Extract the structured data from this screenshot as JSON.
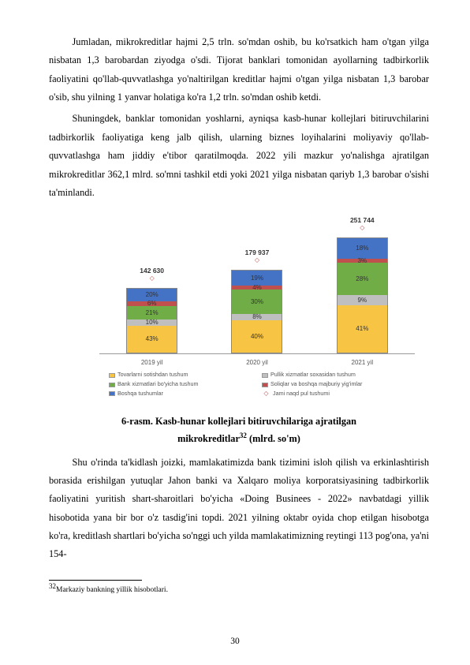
{
  "para1": "Jumladan, mikrokreditlar hajmi 2,5 trln. so'mdan oshib, bu ko'rsatkich ham o'tgan yilga nisbatan 1,3 barobardan ziyodga o'sdi. Tijorat banklari tomonidan ayollarning tadbirkorlik faoliyatini qo'llab-quvvatlashga yo'naltirilgan kreditlar hajmi o'tgan yilga nisbatan 1,3 barobar o'sib, shu yilning 1 yanvar holatiga ko'ra 1,2 trln. so'mdan oshib ketdi.",
  "para2": "Shuningdek, banklar tomonidan yoshlarni, ayniqsa kasb-hunar kollejlari bitiruvchilarini tadbirkorlik faoliyatiga keng jalb qilish, ularning biznes loyihalarini moliyaviy qo'llab-quvvatlashga ham jiddiy e'tibor qaratilmoqda. 2022 yili mazkur yo'nalishga ajratilgan mikrokreditlar 362,1 mlrd. so'mni tashkil etdi yoki 2021 yilga nisbatan qariyb 1,3 barobar o'sishi ta'minlandi.",
  "chart": {
    "type": "stacked-bar",
    "categories": [
      "2019 yil",
      "2020 yil",
      "2021 yil"
    ],
    "totals": [
      "142 630",
      "179 937",
      "251 744"
    ],
    "colors": {
      "yellow": "#f7c444",
      "grey": "#bfbfbf",
      "green": "#70ad47",
      "red": "#c0504d",
      "blue": "#4472c4"
    },
    "series": [
      {
        "labels": [
          "43%",
          "10%",
          "21%",
          "6%",
          "20%"
        ],
        "heights": [
          34,
          8,
          17,
          6,
          16
        ]
      },
      {
        "labels": [
          "40%",
          "8%",
          "30%",
          "4%",
          "19%"
        ],
        "heights": [
          41,
          8,
          31,
          5,
          19
        ]
      },
      {
        "labels": [
          "41%",
          "9%",
          "28%",
          "3%",
          "18%"
        ],
        "heights": [
          60,
          13,
          41,
          5,
          26
        ]
      }
    ],
    "legend": [
      {
        "color": "#f7c444",
        "text": "Tovarlarni sotishdan tushum"
      },
      {
        "color": "#bfbfbf",
        "text": "Pullik xizmatlar soxasidan tushum"
      },
      {
        "color": "#70ad47",
        "text": "Bank xizmatlari bo'yicha tushum"
      },
      {
        "color": "#c0504d",
        "text": "Soliqlar va boshqa majburiy yig'imlar"
      },
      {
        "color": "#4472c4",
        "text": "Boshqa tushumlar"
      },
      {
        "diamond": true,
        "text": "Jami naqd pul tushumi"
      }
    ]
  },
  "caption_l1": "6-rasm. Kasb-hunar kollejlari bitiruvchilariga ajratilgan",
  "caption_l2_a": "mikrokreditlar",
  "caption_sup": "32",
  "caption_l2_b": " (mlrd. so'm)",
  "para3": "Shu o'rinda ta'kidlash joizki, mamlakatimizda bank tizimini isloh qilish va erkinlashtirish borasida erishilgan yutuqlar Jahon banki va Xalqaro moliya korporatsiyasining tadbirkorlik faoliyatini yuritish shart-sharoitlari bo'yicha «Doing Businees - 2022» navbatdagi yillik hisobotida yana bir bor o'z tasdig'ini topdi. 2021 yilning oktabr oyida chop etilgan hisobotga ko'ra, kreditlash shartlari bo'yicha so'nggi uch yilda mamlakatimizning reytingi 113 pog'ona, ya'ni 154-",
  "footnote_sup": "32",
  "footnote_text": "Markaziy bankning yillik hisobotlari.",
  "page_num": "30"
}
